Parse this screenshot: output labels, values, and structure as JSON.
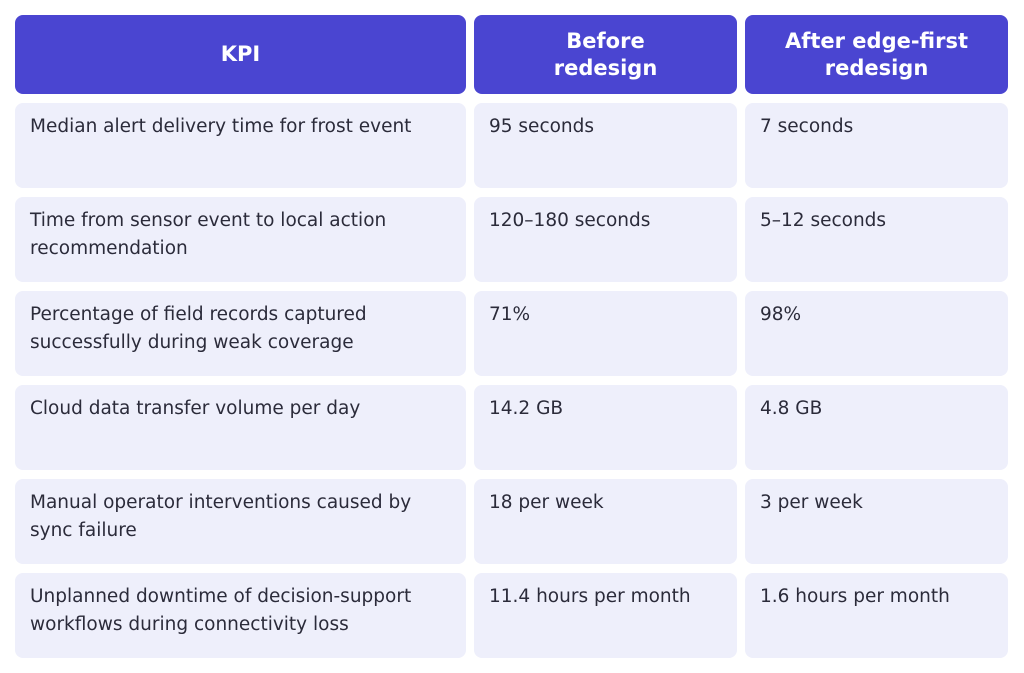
{
  "table": {
    "header": [
      "KPI",
      "Before redesign",
      "After edge-first redesign"
    ],
    "rows": [
      [
        "Median alert delivery time for frost event",
        "95 seconds",
        "7 seconds"
      ],
      [
        "Time from sensor event to local action recommendation",
        "120–180 seconds",
        "5–12 seconds"
      ],
      [
        "Percentage of field records captured successfully during weak coverage",
        "71%",
        "98%"
      ],
      [
        "Cloud data transfer volume per day",
        "14.2 GB",
        "4.8 GB"
      ],
      [
        "Manual operator interventions caused by sync failure",
        "18 per week",
        "3 per week"
      ],
      [
        "Unplanned downtime of decision-support workflows during connectivity loss",
        "11.4 hours per month",
        "1.6 hours per month"
      ]
    ]
  }
}
